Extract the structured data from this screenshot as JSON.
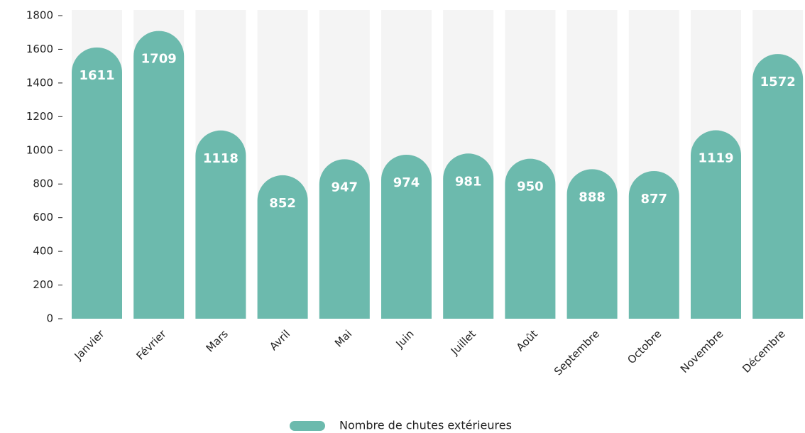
{
  "chart_data": {
    "type": "bar",
    "categories": [
      "Janvier",
      "Février",
      "Mars",
      "Avril",
      "Mai",
      "Juin",
      "Juillet",
      "Août",
      "Septembre",
      "Octobre",
      "Novembre",
      "Décembre"
    ],
    "series": [
      {
        "name": "Nombre de chutes extérieures",
        "color": "#6cbaad",
        "values": [
          1611,
          1709,
          1118,
          852,
          947,
          974,
          981,
          950,
          888,
          877,
          1119,
          1572
        ]
      }
    ],
    "ylim": [
      0,
      1800
    ],
    "yticks": [
      0,
      200,
      400,
      600,
      800,
      1000,
      1200,
      1400,
      1600,
      1800
    ],
    "legend": "bottom"
  }
}
